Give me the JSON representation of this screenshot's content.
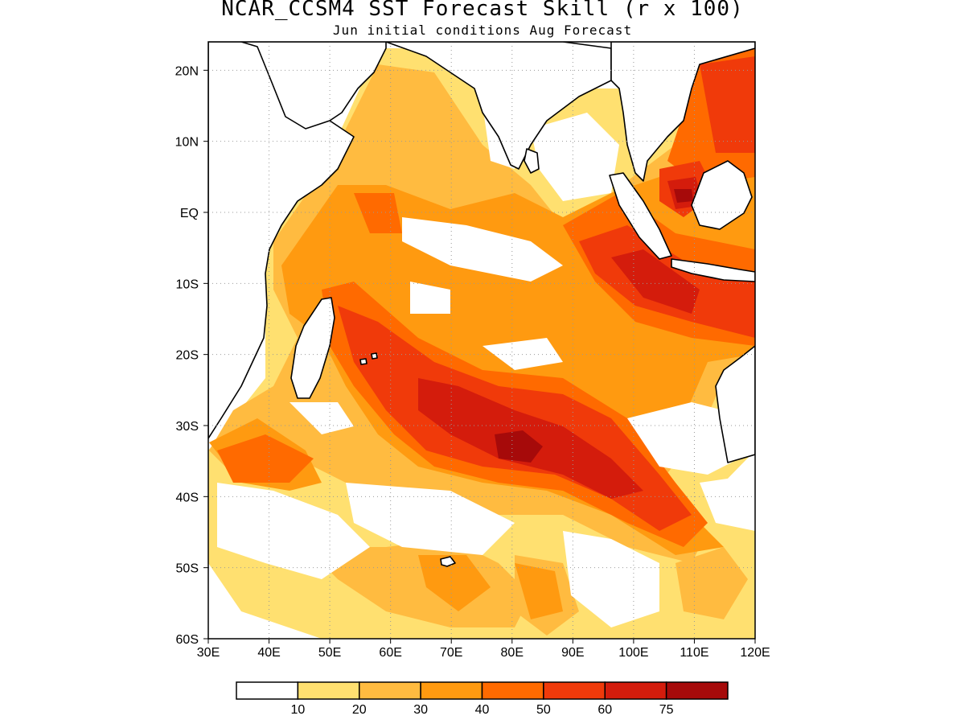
{
  "title": "NCAR_CCSM4 SST Forecast Skill (r x 100)",
  "subtitle": "Jun initial conditions  Aug Forecast",
  "map": {
    "lon_range": [
      30,
      120
    ],
    "lat_range": [
      -60,
      24
    ],
    "lon_ticks": [
      "30E",
      "40E",
      "50E",
      "60E",
      "70E",
      "80E",
      "90E",
      "100E",
      "110E",
      "120E"
    ],
    "lat_ticks": [
      "20N",
      "10N",
      "EQ",
      "10S",
      "20S",
      "30S",
      "40S",
      "50S",
      "60S"
    ],
    "grid": "dotted",
    "land_fill": "#ffffff",
    "coast_color": "#000000"
  },
  "colorbar": {
    "levels": [
      "10",
      "20",
      "30",
      "40",
      "50",
      "60",
      "75"
    ],
    "colors": [
      "#ffffff",
      "#ffe070",
      "#ffbb40",
      "#ff9a10",
      "#ff6a00",
      "#f03a0a",
      "#d41c0c",
      "#a60a0a"
    ]
  }
}
